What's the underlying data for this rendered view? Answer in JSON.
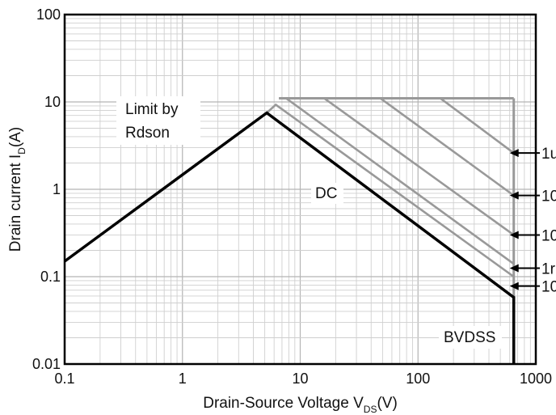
{
  "chart_data": {
    "type": "line",
    "x_scale": "log",
    "y_scale": "log",
    "xlim": [
      0.1,
      1000
    ],
    "ylim": [
      0.01,
      100
    ],
    "x_ticks": [
      {
        "value": 0.1,
        "label": "0.1"
      },
      {
        "value": 1,
        "label": "1"
      },
      {
        "value": 10,
        "label": "10"
      },
      {
        "value": 100,
        "label": "100"
      },
      {
        "value": 1000,
        "label": "1000"
      }
    ],
    "y_ticks": [
      {
        "value": 0.01,
        "label": "0.01"
      },
      {
        "value": 0.1,
        "label": "0.1"
      },
      {
        "value": 1,
        "label": "1"
      },
      {
        "value": 10,
        "label": "10"
      },
      {
        "value": 100,
        "label": "100"
      }
    ],
    "xlabel": {
      "main": "Drain-Source Voltage V",
      "sub": "DS",
      "tail": "(V)"
    },
    "ylabel": {
      "main": "Drain current I",
      "sub": "D",
      "tail": "(A)"
    },
    "grid": true,
    "series": [
      {
        "label": "DC",
        "color": "#000000",
        "points": [
          [
            0.1,
            0.15
          ],
          [
            5.2,
            7.5
          ],
          [
            650,
            0.058
          ],
          [
            650,
            0.01
          ]
        ]
      },
      {
        "label": "10",
        "color": "#999999",
        "points": [
          [
            5.2,
            7.5
          ],
          [
            6.2,
            9.3
          ],
          [
            650,
            0.1
          ]
        ]
      },
      {
        "label": "1r",
        "color": "#999999",
        "points": [
          [
            6.6,
            11
          ],
          [
            7.6,
            11
          ],
          [
            650,
            0.14
          ]
        ]
      },
      {
        "label": "10",
        "color": "#999999",
        "points": [
          [
            16,
            11
          ],
          [
            650,
            0.3
          ]
        ]
      },
      {
        "label": "10",
        "color": "#999999",
        "points": [
          [
            48,
            11
          ],
          [
            650,
            0.85
          ]
        ]
      },
      {
        "label": "1u",
        "color": "#999999",
        "points": [
          [
            155,
            11
          ],
          [
            650,
            2.6
          ]
        ]
      }
    ],
    "top_limit": {
      "y": 11,
      "x_from": 6.6,
      "x_to": 650,
      "color": "#999999"
    },
    "right_limit": {
      "x": 650,
      "y_from": 0.058,
      "y_to": 11,
      "color": "#999999"
    },
    "annotations": {
      "limit": {
        "line1": "Limit by",
        "line2": "Rdson"
      },
      "dc": "DC",
      "bvdss": "BVDSS"
    },
    "arrows": [
      {
        "label": "1u",
        "y": 2.6
      },
      {
        "label": "10",
        "y": 0.85
      },
      {
        "label": "10",
        "y": 0.3
      },
      {
        "label": "1r",
        "y": 0.125
      },
      {
        "label": "10",
        "y": 0.078
      }
    ]
  }
}
